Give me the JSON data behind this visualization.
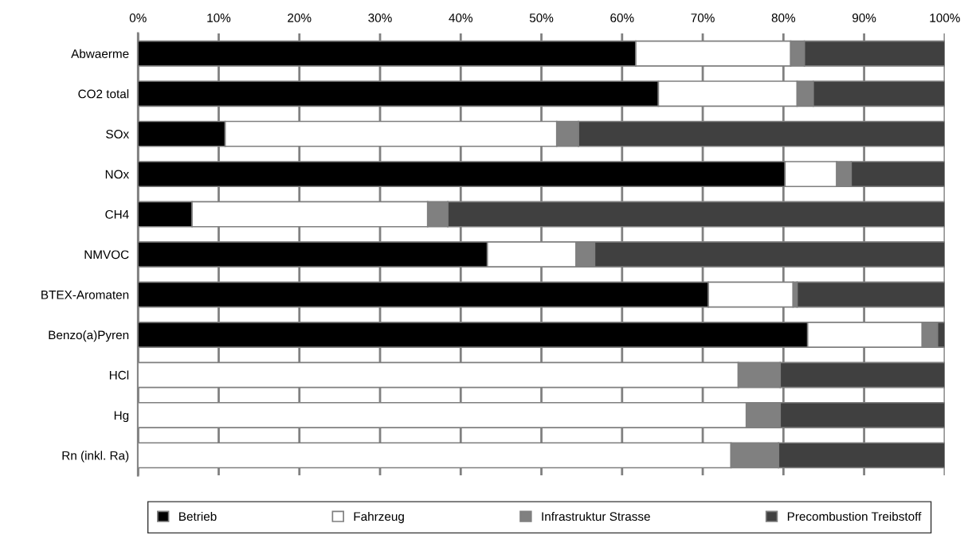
{
  "chart_data": {
    "type": "bar",
    "orientation": "horizontal",
    "stacked": true,
    "grid": "x",
    "legend": "bottom",
    "categories": [
      "Abwaerme",
      "CO2 total",
      "SOx",
      "NOx",
      "CH4",
      "NMVOC",
      "BTEX-Aromaten",
      "Benzo(a)Pyren",
      "HCl",
      "Hg",
      "Rn (inkl. Ra)"
    ],
    "xlim": [
      0,
      100
    ],
    "xticks": [
      {
        "value": 0,
        "label": "0%"
      },
      {
        "value": 10,
        "label": "10%"
      },
      {
        "value": 20,
        "label": "20%"
      },
      {
        "value": 30,
        "label": "30%"
      },
      {
        "value": 40,
        "label": "40%"
      },
      {
        "value": 50,
        "label": "50%"
      },
      {
        "value": 60,
        "label": "60%"
      },
      {
        "value": 70,
        "label": "70%"
      },
      {
        "value": 80,
        "label": "80%"
      },
      {
        "value": 90,
        "label": "90%"
      },
      {
        "value": 100,
        "label": "100%"
      }
    ],
    "series": [
      {
        "name": "Betrieb",
        "color": "#000000",
        "values": [
          61.7,
          64.5,
          10.8,
          80.2,
          6.7,
          43.3,
          70.7,
          83.0,
          0,
          0,
          0
        ]
      },
      {
        "name": "Fahrzeug",
        "color": "#ffffff",
        "values": [
          19.2,
          17.2,
          41.1,
          6.4,
          29.2,
          11.0,
          10.5,
          14.2,
          74.4,
          75.4,
          73.5
        ]
      },
      {
        "name": "Infrastruktur Strasse",
        "color": "#808080",
        "values": [
          1.7,
          2.0,
          2.7,
          1.8,
          2.5,
          2.3,
          0.5,
          1.9,
          5.2,
          4.2,
          5.9
        ]
      },
      {
        "name": "Precombustion Treibstoff",
        "color": "#404040",
        "values": [
          17.4,
          16.3,
          45.4,
          11.6,
          61.6,
          43.4,
          18.3,
          0.9,
          20.4,
          20.4,
          20.6
        ]
      }
    ]
  }
}
